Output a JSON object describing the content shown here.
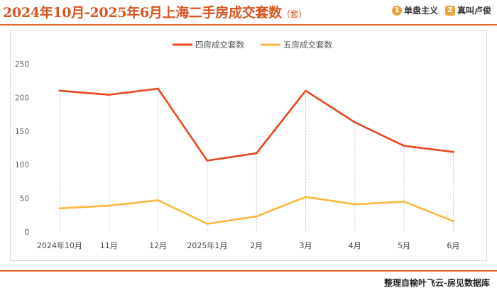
{
  "header": {
    "title": "2024年10月-2025年6月上海二手房成交套数",
    "title_unit": "（套）",
    "logos": [
      {
        "icon": "coin-icon",
        "text": "单盘主义"
      },
      {
        "icon": "z-badge-icon",
        "text": "真叫卢俊"
      }
    ]
  },
  "footer": {
    "source": "整理自榆叶飞云-房见数据库"
  },
  "colors": {
    "accent": "#e36a2a",
    "series_four": "#e8461e",
    "series_five": "#fbb83a"
  },
  "chart_data": {
    "type": "line",
    "title": "",
    "xlabel": "",
    "ylabel": "",
    "categories": [
      "2024年10月",
      "11月",
      "12月",
      "2025年1月",
      "2月",
      "3月",
      "4月",
      "5月",
      "6月"
    ],
    "series": [
      {
        "name": "四房成交套数",
        "color": "#e8461e",
        "values": [
          210,
          204,
          213,
          106,
          117,
          210,
          163,
          128,
          119
        ]
      },
      {
        "name": "五房成交套数",
        "color": "#fbb83a",
        "values": [
          35,
          39,
          47,
          12,
          23,
          52,
          41,
          45,
          16
        ]
      }
    ],
    "ylim": [
      0,
      250
    ],
    "yticks": [
      0,
      50,
      100,
      150,
      200,
      250
    ],
    "grid": false,
    "drop_lines": true,
    "legend": "top-center"
  }
}
